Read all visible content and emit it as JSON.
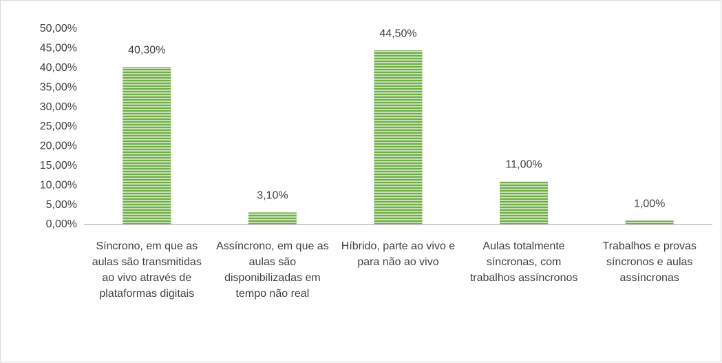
{
  "chart_data": {
    "type": "bar",
    "categories": [
      "Síncrono, em que as aulas são transmitidas ao vivo através de plataformas digitais",
      "Assíncrono, em que as aulas são disponibilizadas em tempo não real",
      "Híbrido, parte ao vivo e para não ao vivo",
      "Aulas totalmente síncronas, com trabalhos assíncronos",
      "Trabalhos e provas síncronos e aulas assíncronas"
    ],
    "values": [
      40.3,
      3.1,
      44.5,
      11.0,
      1.0
    ],
    "value_labels": [
      "40,30%",
      "3,10%",
      "44,50%",
      "11,00%",
      "1,00%"
    ],
    "color": "#70ad47",
    "ylim": [
      0,
      50
    ],
    "yticks": [
      {
        "value": 0,
        "label": "0,00%"
      },
      {
        "value": 5,
        "label": "5,00%"
      },
      {
        "value": 10,
        "label": "10,00%"
      },
      {
        "value": 15,
        "label": "15,00%"
      },
      {
        "value": 20,
        "label": "20,00%"
      },
      {
        "value": 25,
        "label": "25,00%"
      },
      {
        "value": 30,
        "label": "30,00%"
      },
      {
        "value": 35,
        "label": "35,00%"
      },
      {
        "value": 40,
        "label": "40,00%"
      },
      {
        "value": 45,
        "label": "45,00%"
      },
      {
        "value": 50,
        "label": "50,00%"
      }
    ],
    "grid": false
  }
}
